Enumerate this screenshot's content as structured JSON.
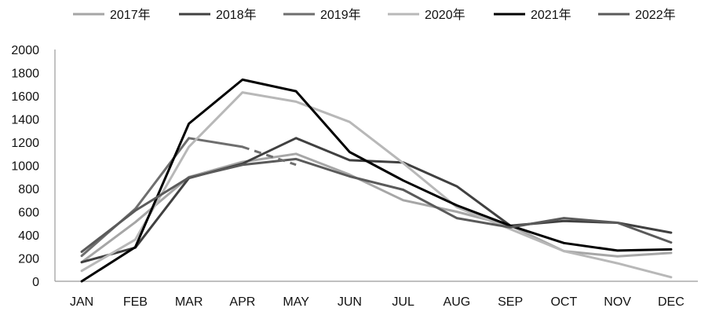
{
  "chart_data": {
    "type": "line",
    "categories": [
      "JAN",
      "FEB",
      "MAR",
      "APR",
      "MAY",
      "JUN",
      "JUL",
      "AUG",
      "SEP",
      "OCT",
      "NOV",
      "DEC"
    ],
    "y_ticks": [
      "0",
      "200",
      "400",
      "600",
      "800",
      "1000",
      "1200",
      "1400",
      "1600",
      "1800",
      "2000"
    ],
    "ylim": [
      0,
      2000
    ],
    "grid": false,
    "legend_position": "top",
    "title": "",
    "xlabel": "",
    "ylabel": "",
    "series": [
      {
        "name": "2017年",
        "color": "#a6a6a6",
        "dash": false,
        "values": [
          165,
          510,
          900,
          1030,
          1100,
          920,
          700,
          600,
          480,
          260,
          215,
          245
        ]
      },
      {
        "name": "2018年",
        "color": "#404040",
        "dash": false,
        "values": [
          165,
          290,
          890,
          1015,
          1235,
          1045,
          1025,
          820,
          480,
          520,
          505,
          420
        ]
      },
      {
        "name": "2019年",
        "color": "#6e6e6e",
        "dash": false,
        "values": [
          220,
          625,
          1235,
          1160,
          null,
          null,
          null,
          null,
          null,
          null,
          null,
          null
        ]
      },
      {
        "name": "2020年",
        "color": "#b8b8b8",
        "dash": false,
        "values": [
          90,
          360,
          1160,
          1630,
          1550,
          1375,
          1020,
          640,
          450,
          260,
          155,
          35
        ]
      },
      {
        "name": "2021年",
        "color": "#000000",
        "dash": false,
        "values": [
          0,
          295,
          1360,
          1740,
          1640,
          1115,
          870,
          655,
          480,
          330,
          265,
          275
        ]
      },
      {
        "name": "2022年",
        "color": "#5a5a5a",
        "dash": false,
        "values": [
          255,
          610,
          895,
          1005,
          1055,
          905,
          790,
          545,
          465,
          545,
          505,
          335
        ]
      }
    ],
    "fragment": {
      "color": "#6e6e6e",
      "dash": "9,7",
      "from": [
        3,
        1160
      ],
      "to": [
        4,
        1005
      ]
    }
  }
}
